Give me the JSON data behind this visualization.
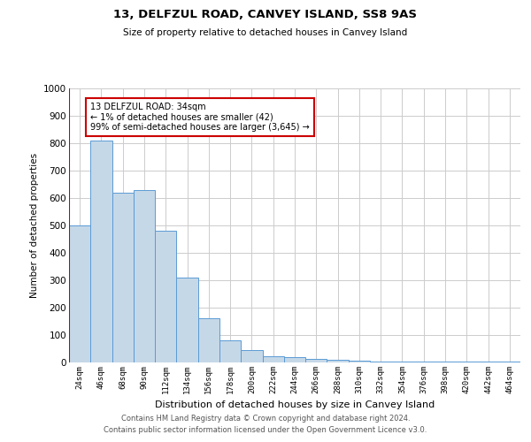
{
  "title1": "13, DELFZUL ROAD, CANVEY ISLAND, SS8 9AS",
  "title2": "Size of property relative to detached houses in Canvey Island",
  "xlabel": "Distribution of detached houses by size in Canvey Island",
  "ylabel": "Number of detached properties",
  "categories": [
    "24sqm",
    "46sqm",
    "68sqm",
    "90sqm",
    "112sqm",
    "134sqm",
    "156sqm",
    "178sqm",
    "200sqm",
    "222sqm",
    "244sqm",
    "266sqm",
    "288sqm",
    "310sqm",
    "332sqm",
    "354sqm",
    "376sqm",
    "398sqm",
    "420sqm",
    "442sqm",
    "464sqm"
  ],
  "values": [
    500,
    810,
    620,
    630,
    480,
    310,
    160,
    80,
    45,
    22,
    18,
    12,
    9,
    5,
    3,
    3,
    2,
    2,
    2,
    2,
    2
  ],
  "bar_color": "#c5d8e8",
  "bar_edge_color": "#5b9bd5",
  "annotation_box_color": "#ffffff",
  "annotation_border_color": "#cc0000",
  "vline_color": "#cc0000",
  "vline_position": 0,
  "annotation_line1": "13 DELFZUL ROAD: 34sqm",
  "annotation_line2": "← 1% of detached houses are smaller (42)",
  "annotation_line3": "99% of semi-detached houses are larger (3,645) →",
  "ylim": [
    0,
    1000
  ],
  "yticks": [
    0,
    100,
    200,
    300,
    400,
    500,
    600,
    700,
    800,
    900,
    1000
  ],
  "grid_color": "#cccccc",
  "footer1": "Contains HM Land Registry data © Crown copyright and database right 2024.",
  "footer2": "Contains public sector information licensed under the Open Government Licence v3.0.",
  "figsize": [
    6.0,
    5.0
  ],
  "dpi": 100
}
